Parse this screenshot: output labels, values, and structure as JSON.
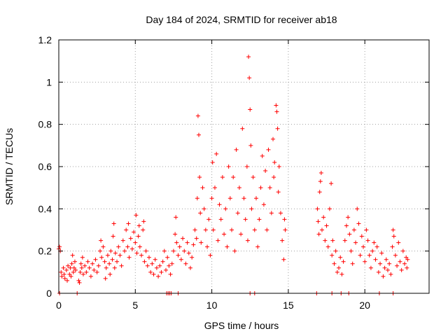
{
  "chart_data": {
    "type": "scatter",
    "title": "Day 184 of 2024, SRMTID for receiver ab18",
    "xlabel": "GPS time / hours",
    "ylabel": "SRMTID / TECUs",
    "xlim": [
      0,
      24.2
    ],
    "ylim": [
      0,
      1.2
    ],
    "xticks": [
      0,
      5,
      10,
      15,
      20
    ],
    "xtick_labels": [
      "0",
      "5",
      "10",
      "15",
      "20"
    ],
    "yticks": [
      0,
      0.2,
      0.4,
      0.6,
      0.8,
      1,
      1.2
    ],
    "ytick_labels": [
      "0",
      "0.2",
      "0.4",
      "0.6",
      "0.8",
      "1",
      "1.2"
    ],
    "grid": true,
    "marker": "+",
    "series": [
      {
        "name": "SRMTID",
        "color": "#ff0000",
        "points": [
          [
            0.0,
            0.21
          ],
          [
            0.05,
            0.22
          ],
          [
            0.1,
            0.2
          ],
          [
            0.15,
            0.1
          ],
          [
            0.2,
            0.08
          ],
          [
            0.3,
            0.12
          ],
          [
            0.35,
            0.09
          ],
          [
            0.4,
            0.07
          ],
          [
            0.5,
            0.11
          ],
          [
            0.55,
            0.06
          ],
          [
            0.6,
            0.13
          ],
          [
            0.7,
            0.09
          ],
          [
            0.75,
            0.12
          ],
          [
            0.8,
            0.08
          ],
          [
            0.85,
            0.14
          ],
          [
            0.9,
            0.18
          ],
          [
            0.95,
            0.1
          ],
          [
            1.0,
            0.12
          ],
          [
            1.05,
            0.15
          ],
          [
            1.1,
            0.11
          ],
          [
            1.3,
            0.06
          ],
          [
            1.35,
            0.05
          ],
          [
            1.4,
            0.1
          ],
          [
            1.45,
            0.14
          ],
          [
            1.5,
            0.12
          ],
          [
            1.55,
            0.17
          ],
          [
            1.6,
            0.09
          ],
          [
            1.7,
            0.13
          ],
          [
            1.8,
            0.1
          ],
          [
            1.9,
            0.15
          ],
          [
            2.0,
            0.12
          ],
          [
            2.1,
            0.08
          ],
          [
            2.2,
            0.14
          ],
          [
            2.3,
            0.11
          ],
          [
            2.4,
            0.16
          ],
          [
            2.5,
            0.1
          ],
          [
            2.6,
            0.13
          ],
          [
            2.7,
            0.2
          ],
          [
            2.75,
            0.25
          ],
          [
            2.8,
            0.17
          ],
          [
            2.9,
            0.22
          ],
          [
            3.0,
            0.15
          ],
          [
            3.05,
            0.07
          ],
          [
            3.1,
            0.12
          ],
          [
            3.2,
            0.18
          ],
          [
            3.3,
            0.14
          ],
          [
            3.35,
            0.09
          ],
          [
            3.4,
            0.2
          ],
          [
            3.5,
            0.16
          ],
          [
            3.55,
            0.27
          ],
          [
            3.6,
            0.33
          ],
          [
            3.65,
            0.12
          ],
          [
            3.7,
            0.19
          ],
          [
            3.8,
            0.15
          ],
          [
            3.9,
            0.22
          ],
          [
            4.0,
            0.18
          ],
          [
            4.1,
            0.13
          ],
          [
            4.2,
            0.25
          ],
          [
            4.3,
            0.2
          ],
          [
            4.4,
            0.3
          ],
          [
            4.5,
            0.22
          ],
          [
            4.55,
            0.33
          ],
          [
            4.6,
            0.17
          ],
          [
            4.7,
            0.26
          ],
          [
            4.8,
            0.21
          ],
          [
            4.9,
            0.29
          ],
          [
            5.0,
            0.24
          ],
          [
            5.05,
            0.37
          ],
          [
            5.1,
            0.19
          ],
          [
            5.2,
            0.27
          ],
          [
            5.25,
            0.32
          ],
          [
            5.3,
            0.22
          ],
          [
            5.4,
            0.18
          ],
          [
            5.5,
            0.3
          ],
          [
            5.55,
            0.34
          ],
          [
            5.6,
            0.15
          ],
          [
            5.7,
            0.2
          ],
          [
            5.8,
            0.13
          ],
          [
            5.9,
            0.17
          ],
          [
            6.0,
            0.1
          ],
          [
            6.1,
            0.14
          ],
          [
            6.2,
            0.09
          ],
          [
            6.3,
            0.16
          ],
          [
            6.4,
            0.12
          ],
          [
            6.5,
            0.08
          ],
          [
            6.6,
            0.13
          ],
          [
            6.7,
            0.1
          ],
          [
            6.8,
            0.15
          ],
          [
            6.9,
            0.2
          ],
          [
            7.0,
            0.11
          ],
          [
            7.1,
            0.17
          ],
          [
            7.2,
            0.13
          ],
          [
            7.3,
            0.09
          ],
          [
            7.4,
            0.14
          ],
          [
            7.5,
            0.2
          ],
          [
            7.6,
            0.28
          ],
          [
            7.65,
            0.36
          ],
          [
            7.7,
            0.24
          ],
          [
            7.8,
            0.18
          ],
          [
            7.9,
            0.22
          ],
          [
            8.0,
            0.16
          ],
          [
            8.1,
            0.26
          ],
          [
            8.2,
            0.2
          ],
          [
            8.3,
            0.14
          ],
          [
            8.4,
            0.24
          ],
          [
            8.5,
            0.19
          ],
          [
            8.6,
            0.12
          ],
          [
            8.7,
            0.17
          ],
          [
            8.8,
            0.23
          ],
          [
            8.9,
            0.3
          ],
          [
            9.0,
            0.26
          ],
          [
            9.05,
            0.45
          ],
          [
            9.1,
            0.84
          ],
          [
            9.15,
            0.75
          ],
          [
            9.2,
            0.55
          ],
          [
            9.25,
            0.38
          ],
          [
            9.3,
            0.24
          ],
          [
            9.4,
            0.5
          ],
          [
            9.5,
            0.4
          ],
          [
            9.6,
            0.3
          ],
          [
            9.7,
            0.22
          ],
          [
            9.8,
            0.35
          ],
          [
            9.9,
            0.18
          ],
          [
            10.0,
            0.45
          ],
          [
            10.05,
            0.62
          ],
          [
            10.1,
            0.3
          ],
          [
            10.2,
            0.5
          ],
          [
            10.3,
            0.66
          ],
          [
            10.4,
            0.25
          ],
          [
            10.5,
            0.42
          ],
          [
            10.6,
            0.35
          ],
          [
            10.7,
            0.55
          ],
          [
            10.8,
            0.28
          ],
          [
            10.9,
            0.4
          ],
          [
            11.0,
            0.22
          ],
          [
            11.1,
            0.6
          ],
          [
            11.2,
            0.45
          ],
          [
            11.3,
            0.3
          ],
          [
            11.4,
            0.55
          ],
          [
            11.5,
            0.2
          ],
          [
            11.6,
            0.68
          ],
          [
            11.7,
            0.38
          ],
          [
            11.8,
            0.5
          ],
          [
            11.9,
            0.28
          ],
          [
            12.0,
            0.78
          ],
          [
            12.1,
            0.45
          ],
          [
            12.2,
            0.35
          ],
          [
            12.3,
            0.6
          ],
          [
            12.35,
            0.25
          ],
          [
            12.4,
            1.12
          ],
          [
            12.45,
            1.02
          ],
          [
            12.5,
            0.87
          ],
          [
            12.55,
            0.7
          ],
          [
            12.6,
            0.4
          ],
          [
            12.7,
            0.55
          ],
          [
            12.8,
            0.3
          ],
          [
            12.9,
            0.45
          ],
          [
            13.0,
            0.22
          ],
          [
            13.1,
            0.35
          ],
          [
            13.2,
            0.5
          ],
          [
            13.3,
            0.65
          ],
          [
            13.4,
            0.42
          ],
          [
            13.5,
            0.58
          ],
          [
            13.6,
            0.3
          ],
          [
            13.7,
            0.68
          ],
          [
            13.8,
            0.5
          ],
          [
            13.9,
            0.38
          ],
          [
            14.0,
            0.73
          ],
          [
            14.05,
            0.55
          ],
          [
            14.1,
            0.62
          ],
          [
            14.2,
            0.89
          ],
          [
            14.25,
            0.86
          ],
          [
            14.3,
            0.78
          ],
          [
            14.35,
            0.48
          ],
          [
            14.4,
            0.6
          ],
          [
            14.5,
            0.38
          ],
          [
            14.6,
            0.25
          ],
          [
            14.7,
            0.16
          ],
          [
            14.75,
            0.35
          ],
          [
            14.8,
            0.3
          ],
          [
            16.9,
            0.4
          ],
          [
            16.95,
            0.34
          ],
          [
            17.0,
            0.28
          ],
          [
            17.05,
            0.48
          ],
          [
            17.1,
            0.53
          ],
          [
            17.15,
            0.57
          ],
          [
            17.2,
            0.3
          ],
          [
            17.3,
            0.36
          ],
          [
            17.4,
            0.25
          ],
          [
            17.5,
            0.32
          ],
          [
            17.6,
            0.22
          ],
          [
            17.7,
            0.4
          ],
          [
            17.8,
            0.52
          ],
          [
            17.85,
            0.18
          ],
          [
            17.9,
            0.25
          ],
          [
            18.0,
            0.14
          ],
          [
            18.1,
            0.2
          ],
          [
            18.2,
            0.1
          ],
          [
            18.3,
            0.12
          ],
          [
            18.4,
            0.17
          ],
          [
            18.5,
            0.09
          ],
          [
            18.6,
            0.15
          ],
          [
            18.7,
            0.25
          ],
          [
            18.8,
            0.32
          ],
          [
            18.9,
            0.36
          ],
          [
            19.0,
            0.28
          ],
          [
            19.1,
            0.2
          ],
          [
            19.2,
            0.14
          ],
          [
            19.3,
            0.3
          ],
          [
            19.4,
            0.24
          ],
          [
            19.5,
            0.4
          ],
          [
            19.6,
            0.33
          ],
          [
            19.7,
            0.18
          ],
          [
            19.8,
            0.27
          ],
          [
            19.9,
            0.22
          ],
          [
            20.0,
            0.15
          ],
          [
            20.1,
            0.3
          ],
          [
            20.2,
            0.25
          ],
          [
            20.3,
            0.18
          ],
          [
            20.4,
            0.12
          ],
          [
            20.5,
            0.2
          ],
          [
            20.6,
            0.24
          ],
          [
            20.7,
            0.16
          ],
          [
            20.8,
            0.22
          ],
          [
            20.9,
            0.1
          ],
          [
            21.0,
            0.14
          ],
          [
            21.1,
            0.19
          ],
          [
            21.2,
            0.08
          ],
          [
            21.3,
            0.12
          ],
          [
            21.4,
            0.16
          ],
          [
            21.5,
            0.11
          ],
          [
            21.6,
            0.14
          ],
          [
            21.7,
            0.09
          ],
          [
            21.8,
            0.22
          ],
          [
            21.85,
            0.3
          ],
          [
            21.9,
            0.27
          ],
          [
            22.0,
            0.18
          ],
          [
            22.1,
            0.13
          ],
          [
            22.2,
            0.24
          ],
          [
            22.3,
            0.15
          ],
          [
            22.4,
            0.11
          ],
          [
            22.5,
            0.2
          ],
          [
            22.6,
            0.14
          ],
          [
            22.7,
            0.17
          ],
          [
            22.75,
            0.12
          ],
          [
            22.8,
            0.16
          ],
          [
            0.05,
            0.0
          ],
          [
            1.2,
            0.0
          ],
          [
            7.05,
            0.0
          ],
          [
            7.15,
            0.0
          ],
          [
            7.25,
            0.0
          ],
          [
            7.35,
            0.0
          ],
          [
            7.8,
            0.0
          ],
          [
            12.5,
            0.0
          ],
          [
            12.8,
            0.0
          ],
          [
            16.85,
            0.0
          ],
          [
            17.85,
            0.0
          ],
          [
            18.45,
            0.0
          ],
          [
            18.95,
            0.0
          ],
          [
            20.95,
            0.0
          ],
          [
            21.85,
            0.0
          ]
        ]
      }
    ]
  }
}
